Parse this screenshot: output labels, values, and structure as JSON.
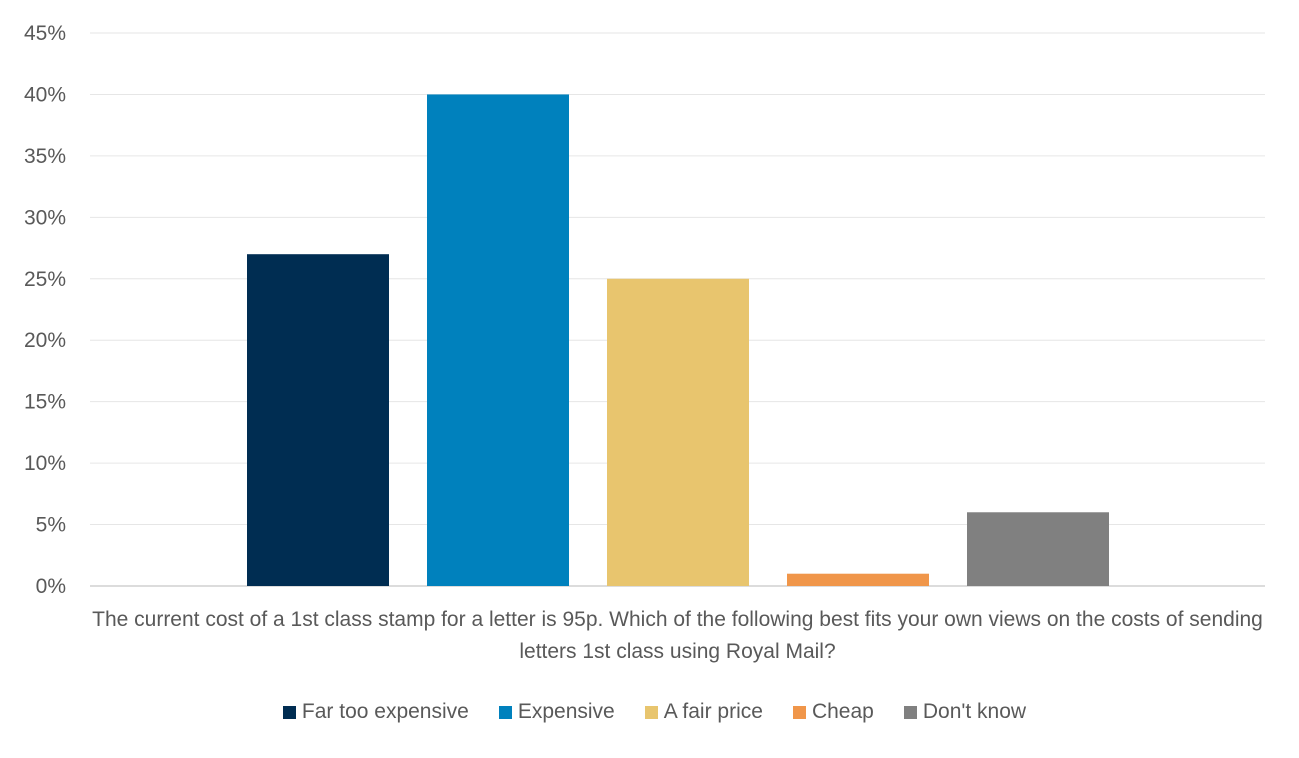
{
  "chart_data": {
    "type": "bar",
    "title": "",
    "xlabel": "The current cost of a 1st class stamp for a letter is 95p. Which of the following best fits your own views on the costs of sending letters 1st class using Royal Mail?",
    "ylabel": "",
    "ylim": [
      0,
      45
    ],
    "yticks": [
      "0%",
      "5%",
      "10%",
      "15%",
      "20%",
      "25%",
      "30%",
      "35%",
      "40%",
      "45%"
    ],
    "grid": true,
    "legend_position": "bottom",
    "series": [
      {
        "name": "Far too expensive",
        "value": 27,
        "color": "#002D52"
      },
      {
        "name": "Expensive",
        "value": 40,
        "color": "#0081BD"
      },
      {
        "name": "A fair price",
        "value": 25,
        "color": "#E8C56E"
      },
      {
        "name": "Cheap",
        "value": 1,
        "color": "#F0964A"
      },
      {
        "name": "Don't know",
        "value": 6,
        "color": "#808080"
      }
    ]
  }
}
